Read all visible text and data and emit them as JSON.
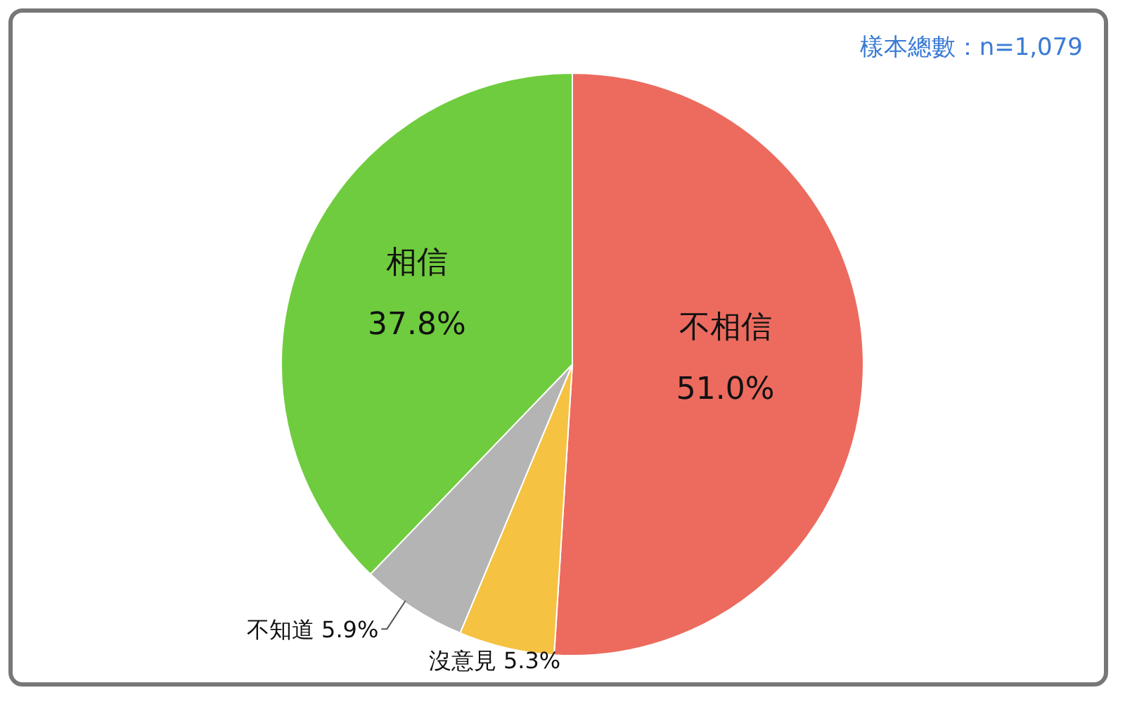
{
  "chart_data": {
    "type": "pie",
    "categories": [
      "不相信",
      "沒意見",
      "不知道",
      "相信"
    ],
    "values": [
      51.0,
      5.3,
      5.9,
      37.8
    ],
    "colors": [
      "#ec6b5e",
      "#f5c242",
      "#b4b4b4",
      "#6fcc3e"
    ],
    "value_labels": [
      "51.0%",
      "5.3%",
      "5.9%",
      "37.8%"
    ],
    "annotations": [
      "樣本總數：n=1,079"
    ]
  }
}
